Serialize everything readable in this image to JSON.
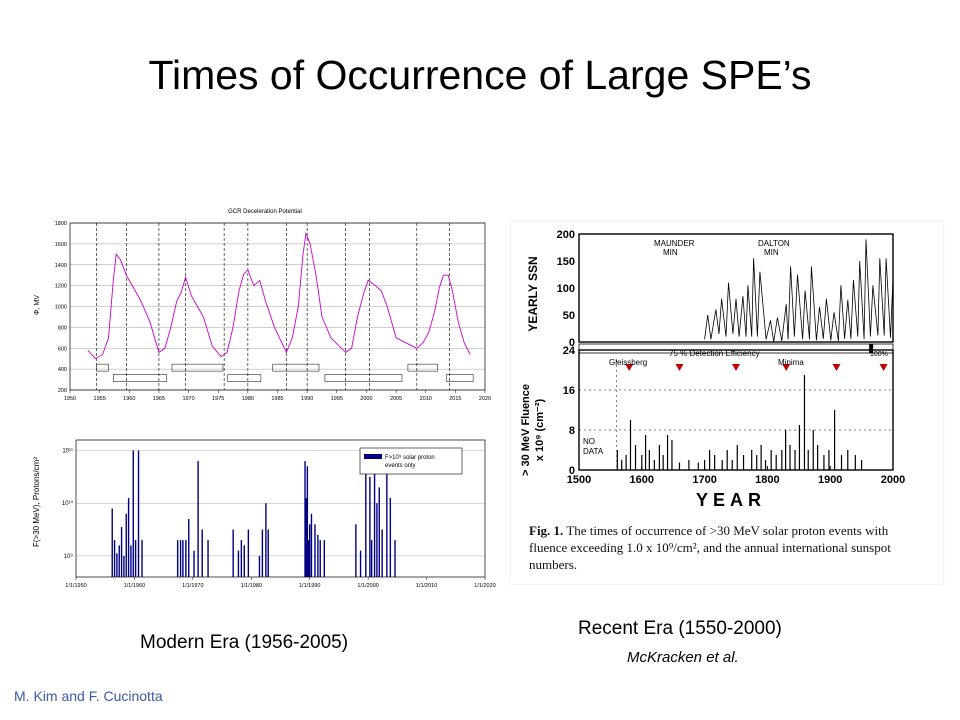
{
  "slide": {
    "title": "Times of Occurrence of Large SPE’s",
    "caption_modern": "Modern Era (1956-2005)",
    "caption_recent": "Recent Era (1550-2000)",
    "caption_authors": "McKracken et al.",
    "credit": "M. Kim and F. Cucinotta",
    "colors": {
      "credit": "#3a5ba8",
      "gcr_line": "#cc00cc",
      "bars": "#000080"
    }
  },
  "chart_data": [
    {
      "type": "line",
      "title": "GCR Deceleration Potential",
      "ylabel": "Φ, MV",
      "xlim": [
        1950,
        2020
      ],
      "ylim": [
        200,
        1800
      ],
      "x_ticks": [
        1950,
        1955,
        1960,
        1965,
        1970,
        1975,
        1980,
        1985,
        1990,
        1995,
        2000,
        2005,
        2010,
        2015,
        2020
      ],
      "y_ticks": [
        200,
        400,
        600,
        800,
        1000,
        1200,
        1400,
        1600,
        1800
      ],
      "cycle_boundaries": [
        1954.5,
        1959.5,
        1965.0,
        1969.5,
        1976.0,
        1980.0,
        1986.5,
        1990.0,
        1996.5,
        2000.5,
        2008.5,
        2014.0
      ],
      "cycle_boxes": [
        [
          1954.5,
          1956.5
        ],
        [
          1957.3,
          1966.3
        ],
        [
          1967.2,
          1975.8
        ],
        [
          1976.6,
          1982.2
        ],
        [
          1984.2,
          1992.0
        ],
        [
          1993.0,
          2006.0
        ],
        [
          2007.0,
          2012.0
        ],
        [
          2013.5,
          2018.0
        ]
      ],
      "series": [
        {
          "x": [
            1953.0,
            1954.3,
            1955.5,
            1956.5,
            1957.3,
            1957.8,
            1958.5,
            1959.5,
            1960.5,
            1962.0,
            1963.5,
            1965.0,
            1966.0,
            1967.0,
            1968.0,
            1968.7,
            1969.5,
            1970.5,
            1971.5,
            1972.5,
            1974.0,
            1975.5,
            1976.5,
            1977.5,
            1978.5,
            1979.3,
            1980.0,
            1981.0,
            1982.0,
            1983.0,
            1984.5,
            1986.5,
            1987.5,
            1988.5,
            1989.3,
            1989.8,
            1990.5,
            1991.5,
            1992.5,
            1994.0,
            1996.5,
            1997.5,
            1998.5,
            1999.5,
            2000.3,
            2001.5,
            2002.5,
            2003.5,
            2005.0,
            2008.5,
            2009.5,
            2010.5,
            2011.5,
            2012.3,
            2013.0,
            2013.8,
            2014.5,
            2015.5,
            2016.5,
            2017.5
          ],
          "y": [
            580,
            500,
            540,
            700,
            1250,
            1500,
            1450,
            1300,
            1200,
            1050,
            850,
            560,
            600,
            800,
            1050,
            1130,
            1280,
            1100,
            1000,
            900,
            620,
            520,
            560,
            800,
            1150,
            1310,
            1350,
            1200,
            1250,
            1050,
            800,
            560,
            700,
            1000,
            1500,
            1700,
            1600,
            1300,
            900,
            700,
            560,
            600,
            900,
            1120,
            1250,
            1200,
            1150,
            1000,
            700,
            600,
            650,
            750,
            950,
            1180,
            1300,
            1300,
            1150,
            850,
            650,
            540
          ]
        }
      ]
    },
    {
      "type": "bar",
      "ylabel": "F(>30 MeV), Protons/cm²",
      "legend": "F>10⁹ solar proton events only",
      "xlim": [
        1950,
        2020
      ],
      "x_tick_labels": [
        "1/1/1950",
        "1/1/1960",
        "1/1/1970",
        "1/1/1980",
        "1/1/1990",
        "1/1/2000",
        "1/1/2010",
        "1/1/2020"
      ],
      "y_tick_labels": [
        "10⁹",
        "10¹⁰",
        "10¹¹"
      ],
      "y_log_range": [
        8.6,
        11.2
      ],
      "events": {
        "x": [
          1956.2,
          1956.6,
          1957.0,
          1957.4,
          1957.8,
          1958.2,
          1958.6,
          1959.0,
          1959.4,
          1959.8,
          1960.2,
          1960.7,
          1961.3,
          1967.4,
          1967.9,
          1968.3,
          1968.8,
          1969.3,
          1970.2,
          1970.9,
          1971.6,
          1972.6,
          1976.9,
          1977.8,
          1978.3,
          1978.8,
          1979.5,
          1981.4,
          1981.9,
          1982.5,
          1982.9,
          1989.2,
          1989.4,
          1989.6,
          1989.8,
          1990.0,
          1990.3,
          1990.9,
          1991.4,
          1991.8,
          1992.5,
          1997.9,
          1998.7,
          1999.6,
          2000.3,
          2000.6,
          2001.1,
          2001.5,
          2001.9,
          2002.4,
          2003.2,
          2003.8,
          2004.6
        ],
        "y": [
          9.9,
          9.3,
          9.05,
          9.2,
          9.55,
          9.0,
          9.8,
          10.1,
          9.2,
          11.0,
          9.3,
          11.0,
          9.3,
          9.3,
          9.3,
          9.3,
          9.3,
          9.7,
          9.1,
          10.8,
          9.5,
          9.3,
          9.5,
          9.1,
          9.3,
          9.2,
          9.5,
          9.0,
          9.5,
          10.0,
          9.5,
          10.8,
          10.1,
          10.7,
          9.3,
          9.6,
          9.8,
          9.6,
          9.4,
          9.3,
          9.3,
          9.6,
          9.1,
          10.6,
          10.5,
          9.3,
          10.7,
          10.0,
          10.3,
          9.5,
          10.6,
          10.1,
          9.3
        ]
      }
    },
    {
      "type": "line",
      "panels": [
        "top",
        "bottom"
      ],
      "top_ylabel": "YEARLY SSN",
      "top_ylim": [
        0,
        200
      ],
      "top_y_ticks": [
        0,
        50,
        100,
        150,
        200
      ],
      "bottom_ylabel_1": "> 30 MeV Fluence",
      "bottom_ylabel_2": "x 10⁹ (cm⁻²)",
      "bottom_ylim": [
        0,
        24
      ],
      "bottom_y_ticks": [
        0,
        8,
        16,
        24
      ],
      "xlim": [
        1500,
        2000
      ],
      "x_ticks": [
        1500,
        1600,
        1700,
        1800,
        1900,
        2000
      ],
      "xlabel": "YEAR",
      "annotation_maunder": "MAUNDER",
      "annotation_dalton": "DALTON",
      "annotation_min": "MIN",
      "annotation_gleissberg": "Gleissberg",
      "annotation_minima": "Minima",
      "detection_efficiency": "75 %  Detection Efficiency",
      "efficiency_100": "100%",
      "no_data_1": "NO",
      "no_data_2": "DATA",
      "minima_markers": [
        1580,
        1660,
        1750,
        1830,
        1910,
        1985
      ],
      "ssn": {
        "x": [
          1700,
          1705,
          1710,
          1715,
          1718,
          1723,
          1727,
          1734,
          1738,
          1745,
          1750,
          1755,
          1761,
          1766,
          1769,
          1775,
          1778,
          1784,
          1788,
          1798,
          1805,
          1810,
          1816,
          1823,
          1830,
          1833,
          1837,
          1843,
          1848,
          1856,
          1860,
          1867,
          1870,
          1878,
          1883,
          1889,
          1894,
          1901,
          1906,
          1913,
          1917,
          1923,
          1928,
          1933,
          1937,
          1944,
          1947,
          1954,
          1957,
          1964,
          1968,
          1976,
          1979,
          1986,
          1989,
          1996,
          2000
        ],
        "y": [
          5,
          50,
          5,
          40,
          60,
          15,
          80,
          10,
          110,
          15,
          80,
          10,
          85,
          10,
          105,
          10,
          155,
          10,
          130,
          5,
          40,
          0,
          45,
          2,
          70,
          5,
          140,
          10,
          125,
          5,
          95,
          5,
          140,
          3,
          65,
          6,
          80,
          3,
          55,
          2,
          105,
          6,
          78,
          6,
          115,
          10,
          150,
          5,
          190,
          10,
          105,
          12,
          155,
          12,
          155,
          8,
          120
        ]
      },
      "fluence_spikes": {
        "x": [
          1561,
          1568,
          1575,
          1582,
          1590,
          1600,
          1606,
          1612,
          1620,
          1628,
          1634,
          1641,
          1648,
          1660,
          1675,
          1690,
          1700,
          1708,
          1716,
          1728,
          1736,
          1744,
          1752,
          1762,
          1775,
          1783,
          1790,
          1797,
          1806,
          1814,
          1823,
          1829,
          1836,
          1844,
          1851,
          1859,
          1865,
          1873,
          1880,
          1890,
          1898,
          1907,
          1918,
          1928,
          1940,
          1950
        ],
        "y": [
          4.0,
          2.0,
          3.0,
          10.0,
          5.0,
          3.0,
          7.0,
          4.0,
          2.0,
          5.0,
          3.0,
          7.0,
          6.0,
          1.5,
          2.0,
          1.5,
          2.0,
          4.0,
          3.0,
          2.0,
          4.0,
          2.0,
          5.0,
          3.0,
          4.0,
          3.0,
          5.0,
          2.0,
          4.0,
          3.0,
          4.0,
          8.0,
          5.0,
          4.0,
          9.0,
          19.0,
          4.0,
          8.0,
          5.0,
          3.0,
          4.0,
          12.0,
          3.0,
          4.0,
          3.0,
          2.0
        ]
      },
      "caption_fig": "Fig. 1.",
      "caption_text": "The times of occurrence of >30 MeV solar proton events with fluence exceeding 1.0 x 10⁹/cm², and the annual international sunspot numbers."
    }
  ]
}
